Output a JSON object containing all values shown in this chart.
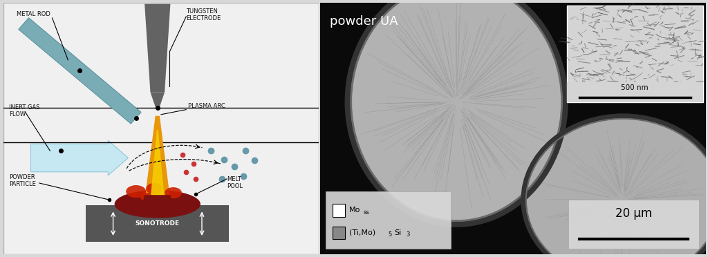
{
  "fig_width": 10.24,
  "fig_height": 3.72,
  "bg_color": "#d8d8d8",
  "left_panel_bg": "#f0f0f0",
  "colors": {
    "electrode_gray": "#636363",
    "metal_rod_teal": "#7aacb5",
    "plasma_orange": "#e8960a",
    "plasma_yellow": "#f5cc00",
    "plasma_dark_red": "#7a1010",
    "melt_bright_red": "#cc2000",
    "sonotrode_dark": "#555555",
    "gas_arrow_blue": "#c5e8f2",
    "gas_arrow_edge": "#90c8dc",
    "red_particle": "#cc3333",
    "teal_particle": "#6699aa",
    "black": "#111111",
    "white": "#ffffff"
  },
  "labels": {
    "metal_rod": "METAL ROD",
    "tungsten_electrode": "TUNGSTEN\nELECTRODE",
    "inert_gas_flow": "INERT GAS\nFLOW",
    "plasma_arc": "PLASMA ARC",
    "powder_particle": "POWDER\nPARTICLE",
    "sonotrode": "SONOTRODE",
    "melt_pool": "MELT\nPOOL",
    "powder_ua": "powder UA",
    "scale_500nm": "500 nm",
    "scale_20um": "20 μm"
  }
}
